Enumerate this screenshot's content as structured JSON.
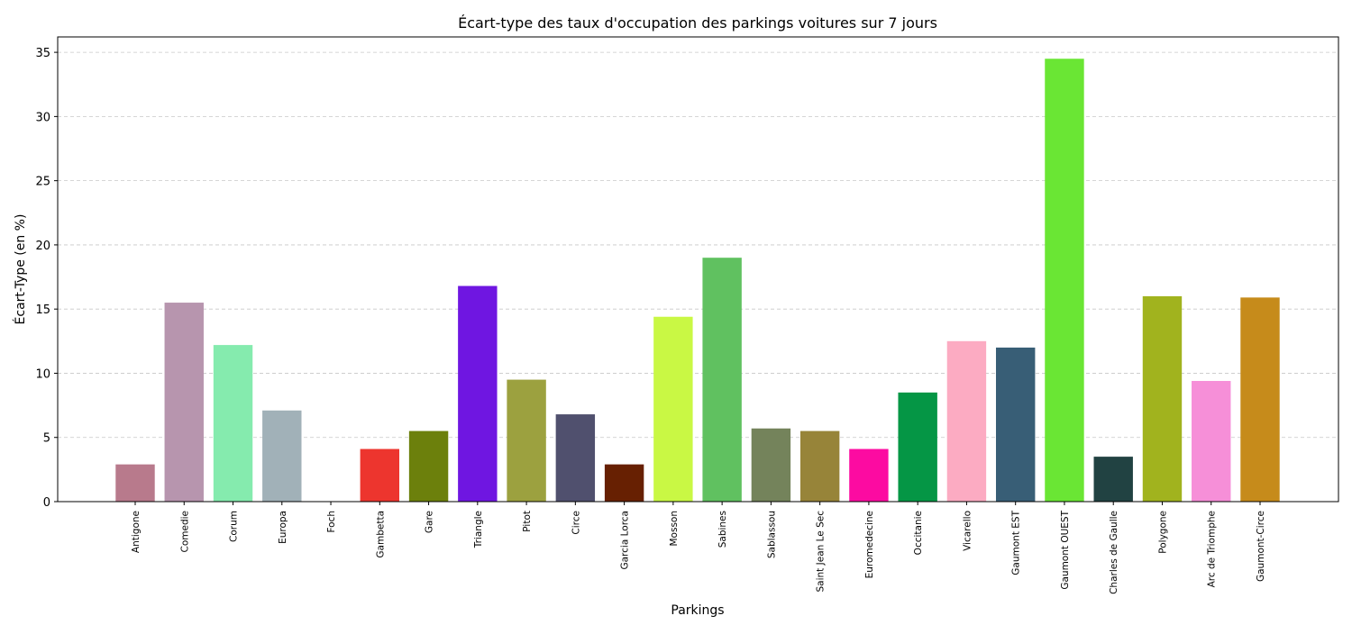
{
  "chart_data": {
    "type": "bar",
    "title": "Écart-type des taux d'occupation des parkings voitures sur 7 jours",
    "xlabel": "Parkings",
    "ylabel": "Écart-Type (en %)",
    "ylim": [
      0,
      36.2
    ],
    "yticks": [
      0,
      5,
      10,
      15,
      20,
      25,
      30,
      35
    ],
    "grid": "y-dashed",
    "categories": [
      "Antigone",
      "Comedie",
      "Corum",
      "Europa",
      "Foch",
      "Gambetta",
      "Gare",
      "Triangle",
      "Pitot",
      "Circe",
      "Garcia Lorca",
      "Mosson",
      "Sabines",
      "Sablassou",
      "Saint Jean Le Sec",
      "Euromedecine",
      "Occitanie",
      "Vicarello",
      "Gaumont EST",
      "Gaumont OUEST",
      "Charles de Gaulle",
      "Polygone",
      "Arc de Triomphe",
      "Gaumont-Circe"
    ],
    "values": [
      2.9,
      15.5,
      12.2,
      7.1,
      0.0,
      4.1,
      5.5,
      16.8,
      9.5,
      6.8,
      2.9,
      14.4,
      19.0,
      5.7,
      5.5,
      4.1,
      8.5,
      12.5,
      12.0,
      34.5,
      3.5,
      16.0,
      9.4,
      15.9
    ],
    "colors": [
      "#b87a8c",
      "#b795ae",
      "#85ebae",
      "#a1b1b8",
      "#b0c4de",
      "#ed352e",
      "#6c800c",
      "#6f16e1",
      "#9ca13f",
      "#50506e",
      "#672002",
      "#c9f844",
      "#60c160",
      "#74835b",
      "#978439",
      "#fc0ba1",
      "#059645",
      "#fcabc2",
      "#385e76",
      "#6ae634",
      "#214242",
      "#a1b31e",
      "#f68fd8",
      "#c68b1b"
    ]
  }
}
